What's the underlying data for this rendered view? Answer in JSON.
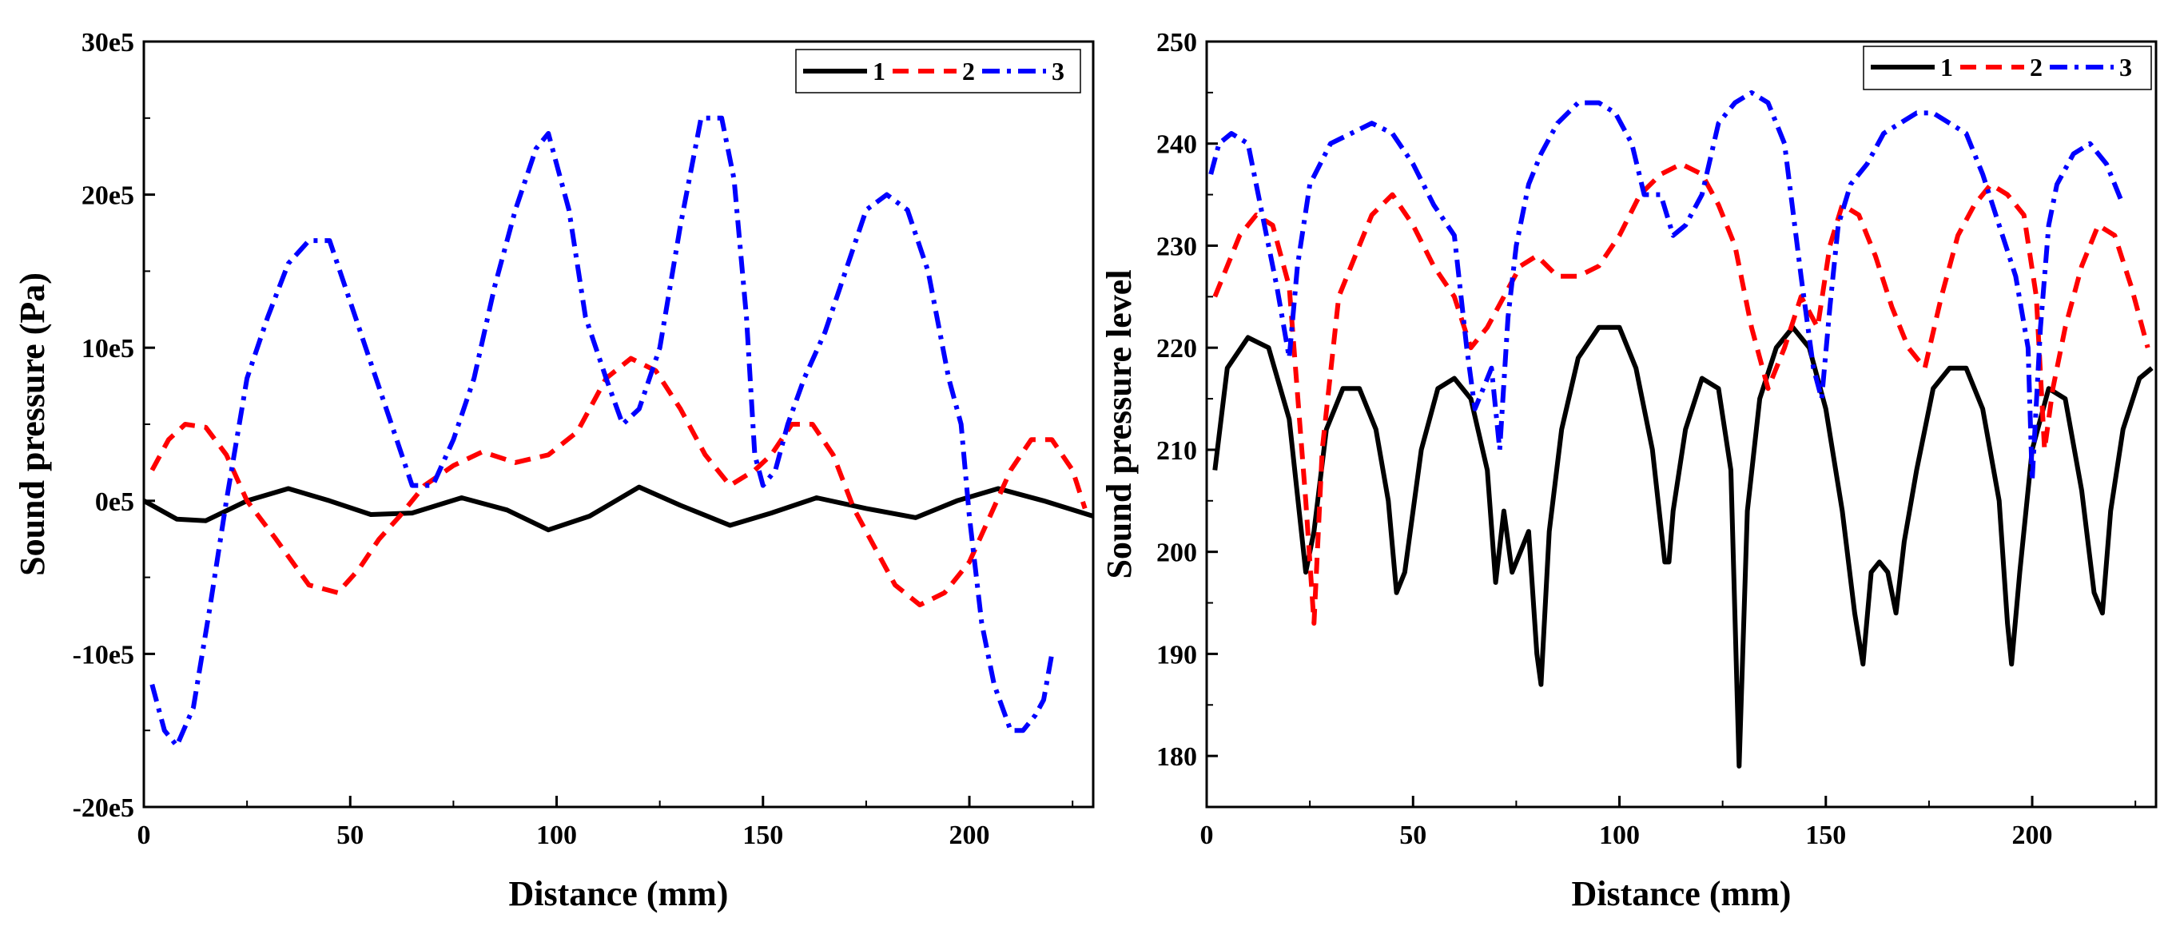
{
  "chart_data": [
    {
      "type": "line",
      "xlabel": "Distance (mm)",
      "ylabel": "Sound pressure (Pa)",
      "xlim": [
        0,
        230
      ],
      "ylim": [
        -2000000,
        3000000
      ],
      "xticks": [
        0,
        50,
        100,
        150,
        200
      ],
      "xtick_labels": [
        "0",
        "50",
        "100",
        "150",
        "200"
      ],
      "yticks": [
        -2000000,
        -1000000,
        0,
        1000000,
        2000000,
        3000000
      ],
      "ytick_labels": [
        "-20e5",
        "-10e5",
        "0e5",
        "10e5",
        "20e5",
        "30e5"
      ],
      "legend": [
        "1",
        "2",
        "3"
      ],
      "legend_position": "top-right",
      "grid": false,
      "series": [
        {
          "name": "1",
          "color": "#000000",
          "dash": "solid",
          "x": [
            0,
            8,
            15,
            25,
            35,
            45,
            55,
            65,
            77,
            88,
            98,
            108,
            120,
            130,
            142,
            152,
            163,
            175,
            187,
            197,
            207,
            218,
            230
          ],
          "y": [
            0,
            -120000,
            -130000,
            0,
            80000,
            0,
            -90000,
            -80000,
            20000,
            -60000,
            -190000,
            -100000,
            90000,
            -30000,
            -160000,
            -80000,
            20000,
            -50000,
            -110000,
            0,
            80000,
            0,
            -100000
          ]
        },
        {
          "name": "2",
          "color": "#ff0000",
          "dash": "dashed",
          "x": [
            2,
            6,
            10,
            15,
            20,
            25,
            32,
            40,
            47,
            52,
            57,
            62,
            68,
            75,
            82,
            90,
            98,
            105,
            112,
            118,
            124,
            130,
            136,
            142,
            148,
            152,
            157,
            162,
            167,
            172,
            177,
            182,
            188,
            194,
            200,
            205,
            210,
            215,
            220,
            225,
            228
          ],
          "y": [
            200000,
            400000,
            500000,
            480000,
            300000,
            0,
            -250000,
            -550000,
            -600000,
            -450000,
            -250000,
            -100000,
            100000,
            230000,
            320000,
            250000,
            300000,
            450000,
            800000,
            930000,
            850000,
            600000,
            300000,
            100000,
            200000,
            300000,
            500000,
            500000,
            300000,
            -50000,
            -300000,
            -550000,
            -680000,
            -600000,
            -400000,
            -100000,
            200000,
            400000,
            400000,
            200000,
            -50000
          ]
        },
        {
          "name": "3",
          "color": "#0000ff",
          "dash": "dashdot",
          "x": [
            2,
            5,
            8,
            12,
            16,
            20,
            25,
            30,
            35,
            40,
            45,
            50,
            55,
            60,
            65,
            70,
            75,
            80,
            85,
            90,
            95,
            98,
            100,
            103,
            107,
            112,
            116,
            120,
            125,
            130,
            135,
            140,
            143,
            146,
            148,
            150,
            153,
            156,
            160,
            165,
            170,
            175,
            180,
            185,
            190,
            195,
            198,
            200,
            203,
            206,
            210,
            213,
            216,
            218,
            220
          ],
          "y": [
            -1200000,
            -1500000,
            -1600000,
            -1350000,
            -700000,
            0,
            800000,
            1200000,
            1550000,
            1700000,
            1700000,
            1300000,
            900000,
            500000,
            100000,
            100000,
            400000,
            800000,
            1400000,
            1900000,
            2300000,
            2400000,
            2200000,
            1900000,
            1200000,
            800000,
            500000,
            600000,
            1000000,
            1800000,
            2500000,
            2500000,
            2100000,
            1200000,
            300000,
            100000,
            200000,
            500000,
            800000,
            1100000,
            1500000,
            1900000,
            2000000,
            1900000,
            1500000,
            800000,
            500000,
            -100000,
            -800000,
            -1200000,
            -1500000,
            -1500000,
            -1400000,
            -1300000,
            -1000000
          ]
        }
      ]
    },
    {
      "type": "line",
      "xlabel": "Distance (mm)",
      "ylabel": "Sound pressure level",
      "xlim": [
        0,
        230
      ],
      "ylim": [
        175,
        250
      ],
      "xticks": [
        0,
        50,
        100,
        150,
        200
      ],
      "xtick_labels": [
        "0",
        "50",
        "100",
        "150",
        "200"
      ],
      "yticks": [
        180,
        190,
        200,
        210,
        220,
        230,
        240,
        250
      ],
      "ytick_labels": [
        "180",
        "190",
        "200",
        "210",
        "220",
        "230",
        "240",
        "250"
      ],
      "legend": [
        "1",
        "2",
        "3"
      ],
      "legend_position": "top-right",
      "grid": false,
      "series": [
        {
          "name": "1",
          "color": "#000000",
          "dash": "solid",
          "x": [
            2,
            5,
            10,
            15,
            20,
            24,
            26,
            29,
            33,
            37,
            41,
            44,
            46,
            48,
            52,
            56,
            60,
            64,
            68,
            70,
            72,
            74,
            76,
            78,
            80,
            81,
            83,
            86,
            90,
            95,
            100,
            104,
            108,
            111,
            112,
            113,
            116,
            120,
            124,
            127,
            129,
            131,
            134,
            138,
            142,
            146,
            150,
            154,
            157,
            159,
            161,
            163,
            165,
            167,
            169,
            172,
            176,
            180,
            184,
            188,
            192,
            194,
            195,
            197,
            200,
            204,
            208,
            212,
            215,
            217,
            219,
            222,
            226,
            229
          ],
          "y": [
            208,
            218,
            221,
            220,
            213,
            198,
            202,
            212,
            216,
            216,
            212,
            205,
            196,
            198,
            210,
            216,
            217,
            215,
            208,
            197,
            204,
            198,
            200,
            202,
            190,
            187,
            202,
            212,
            219,
            222,
            222,
            218,
            210,
            199,
            199,
            204,
            212,
            217,
            216,
            208,
            179,
            204,
            215,
            220,
            222,
            220,
            214,
            204,
            194,
            189,
            198,
            199,
            198,
            194,
            201,
            208,
            216,
            218,
            218,
            214,
            205,
            193,
            189,
            198,
            210,
            216,
            215,
            206,
            196,
            194,
            204,
            212,
            217,
            218
          ]
        },
        {
          "name": "2",
          "color": "#ff0000",
          "dash": "dashed",
          "x": [
            2,
            5,
            8,
            12,
            16,
            20,
            24,
            26,
            28,
            32,
            36,
            40,
            45,
            50,
            55,
            60,
            64,
            68,
            72,
            76,
            80,
            85,
            90,
            95,
            100,
            105,
            110,
            115,
            120,
            124,
            128,
            132,
            136,
            140,
            144,
            148,
            151,
            154,
            158,
            162,
            166,
            170,
            174,
            178,
            182,
            186,
            190,
            194,
            198,
            201,
            203,
            205,
            208,
            212,
            216,
            220,
            224,
            228
          ],
          "y": [
            225,
            228,
            231,
            233,
            232,
            226,
            205,
            193,
            210,
            225,
            229,
            233,
            235,
            232,
            228,
            225,
            220,
            222,
            225,
            228,
            229,
            227,
            227,
            228,
            231,
            235,
            237,
            238,
            237,
            234,
            230,
            222,
            216,
            220,
            225,
            222,
            230,
            234,
            233,
            229,
            224,
            220,
            218,
            225,
            231,
            234,
            236,
            235,
            233,
            225,
            210,
            216,
            222,
            228,
            232,
            231,
            226,
            220
          ]
        },
        {
          "name": "3",
          "color": "#0000ff",
          "dash": "dashdot",
          "x": [
            1,
            3,
            6,
            10,
            14,
            17,
            20,
            22,
            25,
            30,
            35,
            40,
            45,
            50,
            55,
            60,
            63,
            65,
            67,
            69,
            71,
            73,
            75,
            78,
            81,
            85,
            90,
            95,
            99,
            103,
            106,
            110,
            113,
            116,
            120,
            124,
            128,
            132,
            136,
            140,
            144,
            147,
            149,
            151,
            153,
            156,
            160,
            164,
            168,
            172,
            176,
            180,
            184,
            188,
            192,
            196,
            199,
            200,
            202,
            204,
            206,
            210,
            214,
            218,
            222
          ],
          "y": [
            237,
            240,
            241,
            240,
            232,
            226,
            219,
            228,
            236,
            240,
            241,
            242,
            241,
            238,
            234,
            231,
            220,
            214,
            216,
            218,
            210,
            223,
            230,
            236,
            239,
            242,
            244,
            244,
            243,
            240,
            235,
            235,
            231,
            232,
            235,
            242,
            244,
            245,
            244,
            240,
            227,
            218,
            215,
            224,
            232,
            236,
            238,
            241,
            242,
            243,
            243,
            242,
            241,
            237,
            232,
            227,
            220,
            207,
            222,
            232,
            236,
            239,
            240,
            238,
            234
          ]
        }
      ]
    }
  ]
}
